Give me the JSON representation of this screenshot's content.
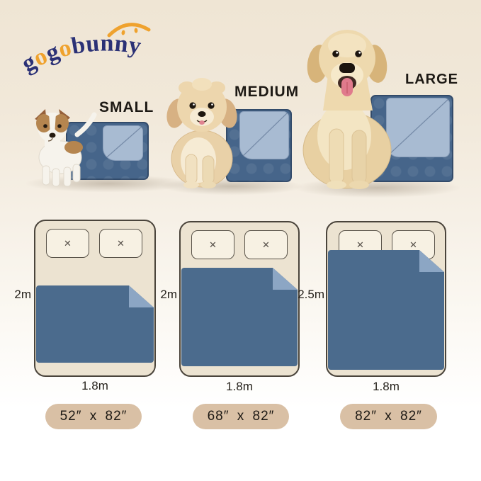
{
  "page": {
    "type": "product-size-chart"
  },
  "logo": {
    "text": "gogobunny",
    "letters": [
      {
        "ch": "g",
        "color": "#2b3176"
      },
      {
        "ch": "o",
        "color": "#efa22e"
      },
      {
        "ch": "g",
        "color": "#2b3176"
      },
      {
        "ch": "o",
        "color": "#efa22e"
      },
      {
        "ch": "b",
        "color": "#2b3176"
      },
      {
        "ch": "u",
        "color": "#2b3176"
      },
      {
        "ch": "n",
        "color": "#2b3176"
      },
      {
        "ch": "n",
        "color": "#2b3176"
      },
      {
        "ch": "y",
        "color": "#2b3176"
      }
    ]
  },
  "products": [
    {
      "label": "SMALL",
      "dog": "jack-russell-puppy"
    },
    {
      "label": "MEDIUM",
      "dog": "havanese-puppy"
    },
    {
      "label": "LARGE",
      "dog": "golden-retriever"
    }
  ],
  "beds": [
    {
      "height_label": "2m",
      "width_label": "1.8m"
    },
    {
      "height_label": "2m",
      "width_label": "1.8m"
    },
    {
      "height_label": "2.5m",
      "width_label": "1.8m"
    }
  ],
  "pillow_mark": "✕",
  "size_badges": [
    {
      "label": "52″ x 82″"
    },
    {
      "label": "68″ x 82″"
    },
    {
      "label": "82″ x 82″"
    }
  ],
  "colors": {
    "background_top": "#efe5d4",
    "background_mid": "#f6f0e6",
    "background_bottom": "#ffffff",
    "blanket_blue": "#4b6b8d",
    "blanket_photo_blue": "#46658a",
    "fold_light": "#a8bbd2",
    "fold_diagram": "#8ca6c4",
    "bed_fill": "#ece3d1",
    "bed_outline": "#4a443b",
    "pillow_fill": "#f7f1e3",
    "badge_fill": "#d9c0a5",
    "text_dark": "#1d1914",
    "logo_navy": "#2b3176",
    "logo_orange": "#efa22e"
  }
}
